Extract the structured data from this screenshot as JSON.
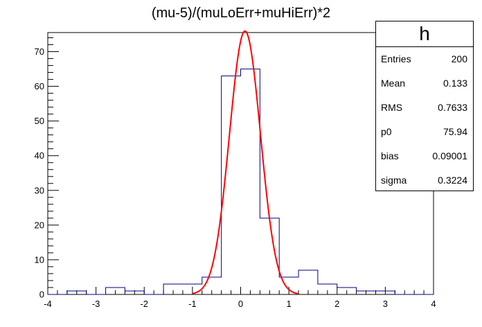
{
  "chart_data": {
    "type": "histogram",
    "title": "(mu-5)/(muLoErr+muHiErr)*2",
    "xlim": [
      -4,
      4
    ],
    "ylim": [
      0,
      75.5
    ],
    "x_ticks": [
      "-4",
      "-3",
      "-2",
      "-1",
      "0",
      "1",
      "2",
      "3",
      "4"
    ],
    "y_ticks": [
      "0",
      "10",
      "20",
      "30",
      "40",
      "50",
      "60",
      "70"
    ],
    "bin_edges": [
      -4.0,
      -3.6,
      -3.2,
      -2.8,
      -2.4,
      -2.0,
      -1.6,
      -1.2,
      -0.8,
      -0.4,
      0.0,
      0.4,
      0.8,
      1.2,
      1.6,
      2.0,
      2.4,
      2.8,
      3.2,
      3.6,
      4.0
    ],
    "bin_counts": [
      0,
      1,
      0,
      2,
      1,
      0,
      3,
      3,
      5,
      63,
      65,
      22,
      5,
      7,
      3,
      2,
      1,
      1,
      0,
      0
    ],
    "hist_color": "#000080",
    "fit": {
      "function": "gaus",
      "p0": 75.94,
      "bias": 0.09001,
      "sigma": 0.3224,
      "color": "#ff0000"
    },
    "stats": {
      "name": "h",
      "rows": [
        {
          "label": "Entries",
          "value": "200"
        },
        {
          "label": "Mean",
          "value": "0.133"
        },
        {
          "label": "RMS",
          "value": "0.7633"
        },
        {
          "label": "p0",
          "value": "75.94"
        },
        {
          "label": "bias",
          "value": "0.09001"
        },
        {
          "label": "sigma",
          "value": "0.3224"
        }
      ]
    }
  }
}
